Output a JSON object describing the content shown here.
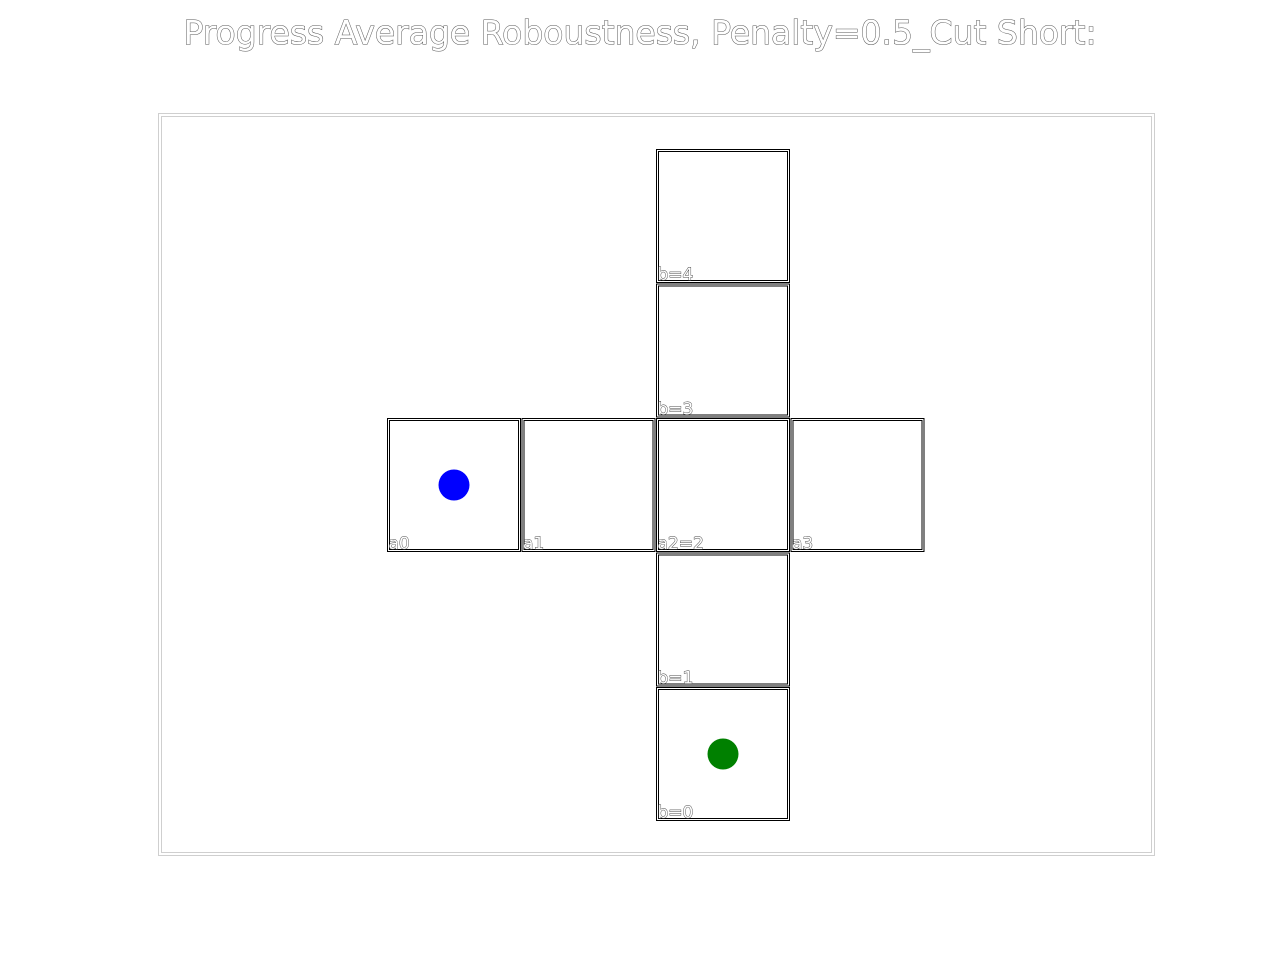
{
  "title": "Progress Average Roboustness, Penalty=0.5_Cut Short:",
  "cells": [
    {
      "id": "b4",
      "label": "b=4"
    },
    {
      "id": "b3",
      "label": "b=3"
    },
    {
      "id": "a0",
      "label": "a0"
    },
    {
      "id": "a1",
      "label": "a1"
    },
    {
      "id": "center",
      "label": "a2=2"
    },
    {
      "id": "a3",
      "label": "a3"
    },
    {
      "id": "b1",
      "label": "b=1"
    },
    {
      "id": "b0",
      "label": "b=0"
    }
  ],
  "markers": [
    {
      "id": "start-marker",
      "cell": "a0",
      "color": "#0000ff"
    },
    {
      "id": "goal-marker",
      "cell": "b0",
      "color": "#008000"
    }
  ]
}
